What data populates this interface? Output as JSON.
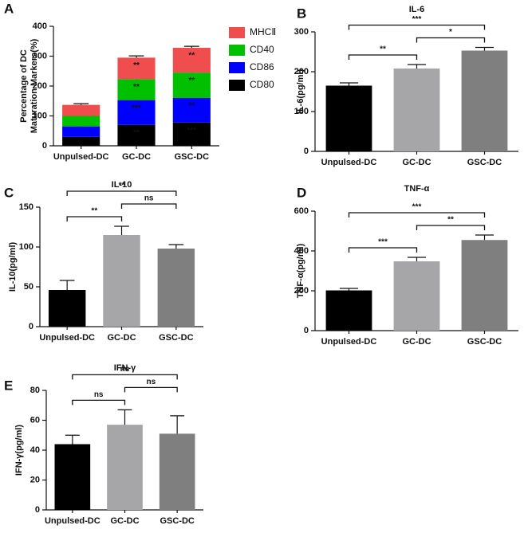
{
  "chart_data": [
    {
      "type": "stacked_bar",
      "label": "A",
      "ylabel": [
        "Percentage of DC",
        "Maturation Markers(%)"
      ],
      "categories": [
        "Unpulsed-DC",
        "GC-DC",
        "GSC-DC"
      ],
      "ylim": [
        0,
        400
      ],
      "yticks": [
        0,
        100,
        200,
        300,
        400
      ],
      "series": [
        {
          "name": "CD80",
          "color": "#000000",
          "values": [
            30,
            70,
            78
          ],
          "errors": [
            3,
            5,
            5
          ],
          "annotations": [
            null,
            "**",
            "***"
          ]
        },
        {
          "name": "CD86",
          "color": "#0000ff",
          "values": [
            35,
            83,
            82
          ],
          "errors": [
            3,
            4,
            5
          ],
          "annotations": [
            null,
            "***",
            "**"
          ]
        },
        {
          "name": "CD40",
          "color": "#00c000",
          "values": [
            35,
            70,
            85
          ],
          "errors": [
            3,
            4,
            4
          ],
          "annotations": [
            null,
            "**",
            "**"
          ]
        },
        {
          "name": "MHCⅡ",
          "color": "#f04e4e",
          "values": [
            37,
            72,
            83
          ],
          "errors": [
            4,
            6,
            5
          ],
          "annotations": [
            null,
            "**",
            "**"
          ]
        }
      ]
    },
    {
      "type": "bar",
      "label": "B",
      "title": "IL-6",
      "ylabel": "IL-6(pg/ml)",
      "categories": [
        "Unpulsed-DC",
        "GC-DC",
        "GSC-DC"
      ],
      "colors": [
        "#000000",
        "#a6a6a8",
        "#7f7f7f"
      ],
      "values": [
        165,
        208,
        253
      ],
      "errors": [
        7,
        10,
        8
      ],
      "ylim": [
        0,
        300
      ],
      "yticks": [
        0,
        100,
        200,
        300
      ],
      "comparisons": [
        {
          "pair": [
            "Unpulsed-DC",
            "GC-DC"
          ],
          "label": "**"
        },
        {
          "pair": [
            "GC-DC",
            "GSC-DC"
          ],
          "label": "*"
        },
        {
          "pair": [
            "Unpulsed-DC",
            "GSC-DC"
          ],
          "label": "***"
        }
      ]
    },
    {
      "type": "bar",
      "label": "C",
      "title": "IL-10",
      "ylabel": "IL-10(pg/ml)",
      "categories": [
        "Unpulsed-DC",
        "GC-DC",
        "GSC-DC"
      ],
      "colors": [
        "#000000",
        "#a6a6a8",
        "#7f7f7f"
      ],
      "values": [
        46,
        115,
        98
      ],
      "errors": [
        12,
        11,
        5
      ],
      "ylim": [
        0,
        150
      ],
      "yticks": [
        0,
        50,
        100,
        150
      ],
      "comparisons": [
        {
          "pair": [
            "Unpulsed-DC",
            "GC-DC"
          ],
          "label": "**"
        },
        {
          "pair": [
            "GC-DC",
            "GSC-DC"
          ],
          "label": "ns"
        },
        {
          "pair": [
            "Unpulsed-DC",
            "GSC-DC"
          ],
          "label": "**"
        }
      ]
    },
    {
      "type": "bar",
      "label": "D",
      "title": "TNF-α",
      "ylabel": "TNF-α(pg/ml)",
      "categories": [
        "Unpulsed-DC",
        "GC-DC",
        "GSC-DC"
      ],
      "colors": [
        "#000000",
        "#a6a6a8",
        "#7f7f7f"
      ],
      "values": [
        202,
        348,
        455
      ],
      "errors": [
        10,
        20,
        25
      ],
      "ylim": [
        0,
        600
      ],
      "yticks": [
        0,
        200,
        400,
        600
      ],
      "comparisons": [
        {
          "pair": [
            "Unpulsed-DC",
            "GC-DC"
          ],
          "label": "***"
        },
        {
          "pair": [
            "GC-DC",
            "GSC-DC"
          ],
          "label": "**"
        },
        {
          "pair": [
            "Unpulsed-DC",
            "GSC-DC"
          ],
          "label": "***"
        }
      ]
    },
    {
      "type": "bar",
      "label": "E",
      "title": "IFN-γ",
      "ylabel": "IFN-γ(pg/ml)",
      "categories": [
        "Unpulsed-DC",
        "GC-DC",
        "GSC-DC"
      ],
      "colors": [
        "#000000",
        "#a6a6a8",
        "#7f7f7f"
      ],
      "values": [
        44,
        57,
        51
      ],
      "errors": [
        6,
        10,
        12
      ],
      "ylim": [
        0,
        80
      ],
      "yticks": [
        0,
        20,
        40,
        60,
        80
      ],
      "comparisons": [
        {
          "pair": [
            "Unpulsed-DC",
            "GC-DC"
          ],
          "label": "ns"
        },
        {
          "pair": [
            "GC-DC",
            "GSC-DC"
          ],
          "label": "ns"
        },
        {
          "pair": [
            "Unpulsed-DC",
            "GSC-DC"
          ],
          "label": "ns"
        }
      ]
    }
  ]
}
